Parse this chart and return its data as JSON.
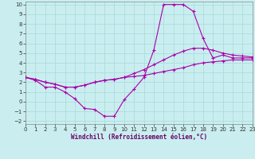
{
  "bg_color": "#caeef0",
  "grid_color": "#aadddd",
  "line_color": "#aa00aa",
  "xlabel": "Windchill (Refroidissement éolien,°C)",
  "xlim": [
    0,
    23
  ],
  "ylim": [
    -2.3,
    10.3
  ],
  "xticks": [
    0,
    1,
    2,
    3,
    4,
    5,
    6,
    7,
    8,
    9,
    10,
    11,
    12,
    13,
    14,
    15,
    16,
    17,
    18,
    19,
    20,
    21,
    22,
    23
  ],
  "yticks": [
    -2,
    -1,
    0,
    1,
    2,
    3,
    4,
    5,
    6,
    7,
    8,
    9,
    10
  ],
  "line1_x": [
    0,
    1,
    2,
    3,
    4,
    5,
    6,
    7,
    8,
    9,
    10,
    11,
    12,
    13,
    14,
    15,
    16,
    17,
    18,
    19,
    20,
    21,
    22,
    23
  ],
  "line1_y": [
    2.5,
    2.2,
    1.5,
    1.5,
    1.0,
    0.3,
    -0.7,
    -0.8,
    -1.5,
    -1.5,
    0.2,
    1.3,
    2.5,
    5.3,
    10.0,
    10.0,
    10.0,
    9.3,
    6.5,
    4.5,
    4.8,
    4.5,
    4.5,
    4.5
  ],
  "line2_x": [
    0,
    1,
    2,
    3,
    4,
    5,
    6,
    7,
    8,
    9,
    10,
    11,
    12,
    13,
    14,
    15,
    16,
    17,
    18,
    19,
    20,
    21,
    22,
    23
  ],
  "line2_y": [
    2.5,
    2.3,
    2.0,
    1.8,
    1.5,
    1.5,
    1.7,
    2.0,
    2.2,
    2.3,
    2.5,
    2.9,
    3.3,
    3.8,
    4.3,
    4.8,
    5.2,
    5.5,
    5.5,
    5.3,
    5.0,
    4.8,
    4.7,
    4.6
  ],
  "line3_x": [
    0,
    1,
    2,
    3,
    4,
    5,
    6,
    7,
    8,
    9,
    10,
    11,
    12,
    13,
    14,
    15,
    16,
    17,
    18,
    19,
    20,
    21,
    22,
    23
  ],
  "line3_y": [
    2.5,
    2.3,
    2.0,
    1.8,
    1.5,
    1.5,
    1.7,
    2.0,
    2.2,
    2.3,
    2.5,
    2.6,
    2.7,
    2.9,
    3.1,
    3.3,
    3.5,
    3.8,
    4.0,
    4.1,
    4.2,
    4.3,
    4.3,
    4.3
  ],
  "xlabel_fontsize": 5.5,
  "tick_fontsize": 5.0
}
